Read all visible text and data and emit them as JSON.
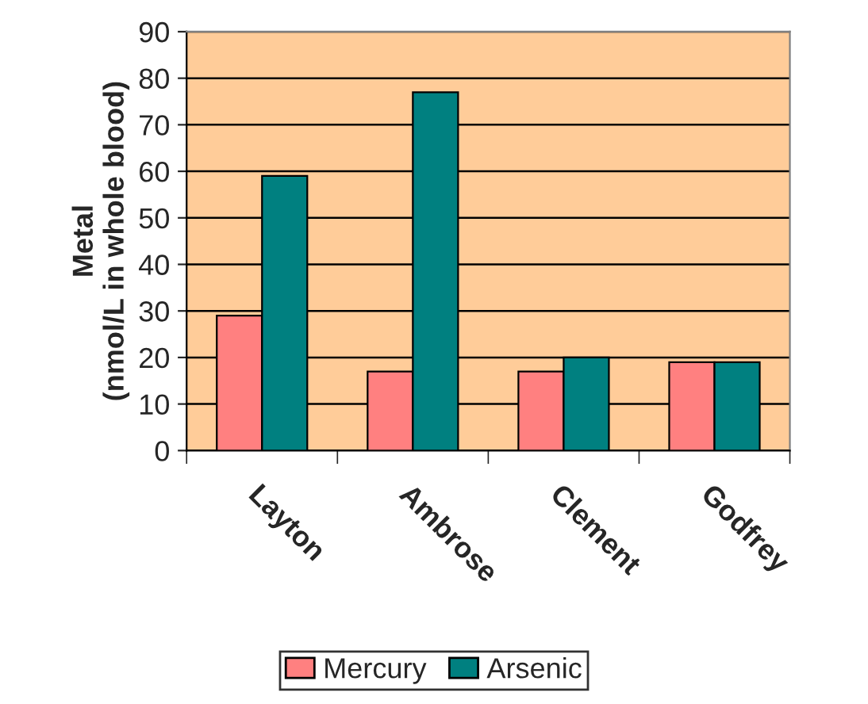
{
  "chart_data": {
    "type": "bar",
    "ylabel": "Metal\n(nmol/L in whole blood)",
    "categories": [
      "Layton",
      "Ambrose",
      "Clement",
      "Godfrey"
    ],
    "series": [
      {
        "name": "Mercury",
        "color": "#ff8080",
        "values": [
          29,
          17,
          17,
          19
        ]
      },
      {
        "name": "Arsenic",
        "color": "#008080",
        "values": [
          59,
          77,
          20,
          19
        ]
      }
    ],
    "ylim": [
      0,
      90
    ],
    "yticks": [
      0,
      10,
      20,
      30,
      40,
      50,
      60,
      70,
      80,
      90
    ],
    "grid": "y",
    "legend": "bottom"
  }
}
